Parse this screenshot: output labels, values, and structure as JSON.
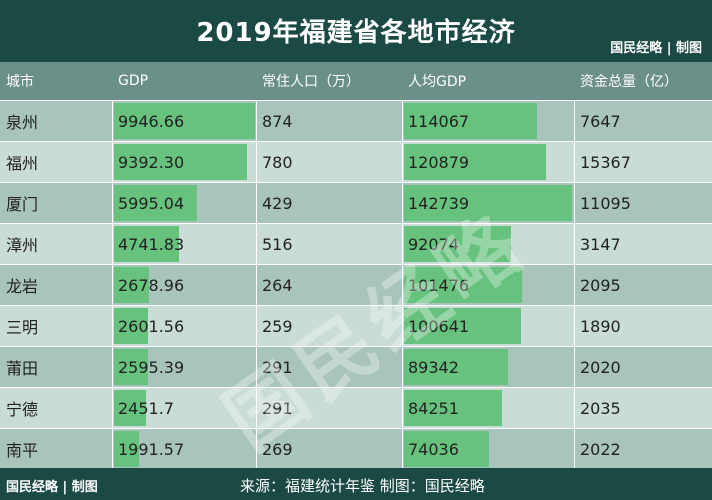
{
  "header": {
    "title": "2019年福建省各地市经济",
    "credit": "国民经略 | 制图"
  },
  "columns": [
    "城市",
    "GDP",
    "常住人口（万）",
    "人均GDP",
    "资金总量（亿）"
  ],
  "rows": [
    {
      "city": "泉州",
      "gdp": "9946.66",
      "pop": "874",
      "gdp_pc": "114067",
      "fund": "7647",
      "gdp_val": 9946.66,
      "pc_val": 114067
    },
    {
      "city": "福州",
      "gdp": "9392.30",
      "pop": "780",
      "gdp_pc": "120879",
      "fund": "15367",
      "gdp_val": 9392.3,
      "pc_val": 120879
    },
    {
      "city": "厦门",
      "gdp": "5995.04",
      "pop": "429",
      "gdp_pc": "142739",
      "fund": "11095",
      "gdp_val": 5995.04,
      "pc_val": 142739
    },
    {
      "city": "漳州",
      "gdp": "4741.83",
      "pop": "516",
      "gdp_pc": "92074",
      "fund": "3147",
      "gdp_val": 4741.83,
      "pc_val": 92074
    },
    {
      "city": "龙岩",
      "gdp": "2678.96",
      "pop": "264",
      "gdp_pc": "101476",
      "fund": "2095",
      "gdp_val": 2678.96,
      "pc_val": 101476
    },
    {
      "city": "三明",
      "gdp": "2601.56",
      "pop": "259",
      "gdp_pc": "100641",
      "fund": "1890",
      "gdp_val": 2601.56,
      "pc_val": 100641
    },
    {
      "city": "莆田",
      "gdp": "2595.39",
      "pop": "291",
      "gdp_pc": "89342",
      "fund": "2020",
      "gdp_val": 2595.39,
      "pc_val": 89342
    },
    {
      "city": "宁德",
      "gdp": "2451.7",
      "pop": "291",
      "gdp_pc": "84251",
      "fund": "2035",
      "gdp_val": 2451.7,
      "pc_val": 84251
    },
    {
      "city": "南平",
      "gdp": "1991.57",
      "pop": "269",
      "gdp_pc": "74036",
      "fund": "2022",
      "gdp_val": 1991.57,
      "pc_val": 74036
    }
  ],
  "footer": {
    "brand": "国民经略 | 制图",
    "source": "来源：福建统计年鉴  制图：国民经略"
  },
  "watermark": "国民经略",
  "colors": {
    "header_bg": "#1b4a44",
    "bar": "#66c27c",
    "row_odd": "#a9c4bd",
    "row_even": "#c9dcd6"
  }
}
